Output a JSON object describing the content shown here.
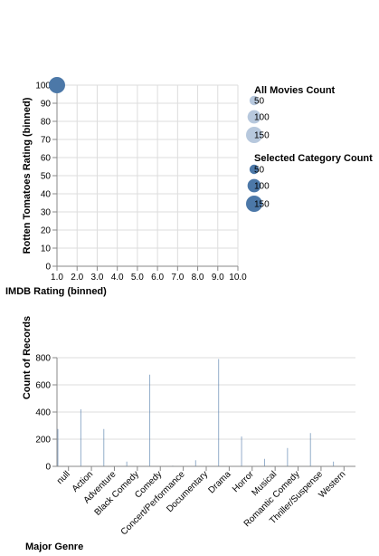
{
  "colors": {
    "all_movies": "#b7c8dd",
    "selected": "#4c78a8",
    "bar": "#4c78a8",
    "grid": "#dddddd",
    "axis": "#888888"
  },
  "chart_data": [
    {
      "type": "scatter",
      "xlabel": "IMDB Rating (binned)",
      "ylabel": "Rotten Tomatoes Rating (binned)",
      "xlim": [
        1,
        10
      ],
      "ylim": [
        0,
        100
      ],
      "x_ticks": [
        "1.0",
        "2.0",
        "3.0",
        "4.0",
        "5.0",
        "6.0",
        "7.0",
        "8.0",
        "9.0",
        "10.0"
      ],
      "y_ticks": [
        "0",
        "10",
        "20",
        "30",
        "40",
        "50",
        "60",
        "70",
        "80",
        "90",
        "100"
      ],
      "grid": true,
      "points": [
        {
          "x": 1.0,
          "y": 100,
          "count": 150,
          "series": "selected"
        }
      ],
      "legends": [
        {
          "title": "All Movies Count",
          "entries": [
            50,
            100,
            150
          ],
          "color": "all_movies"
        },
        {
          "title": "Selected Category Count",
          "entries": [
            50,
            100,
            150
          ],
          "color": "selected"
        }
      ]
    },
    {
      "type": "bar",
      "xlabel": "Major Genre",
      "ylabel": "Count of Records",
      "ylim": [
        0,
        800
      ],
      "y_ticks": [
        "0",
        "200",
        "400",
        "600",
        "800"
      ],
      "grid": true,
      "categories": [
        "null",
        "Action",
        "Adventure",
        "Black Comedy",
        "Comedy",
        "Concert/Performance",
        "Documentary",
        "Drama",
        "Horror",
        "Musical",
        "Romantic Comedy",
        "Thriller/Suspense",
        "Western"
      ],
      "values": [
        275,
        420,
        275,
        35,
        675,
        5,
        45,
        790,
        220,
        55,
        135,
        245,
        35
      ]
    }
  ]
}
